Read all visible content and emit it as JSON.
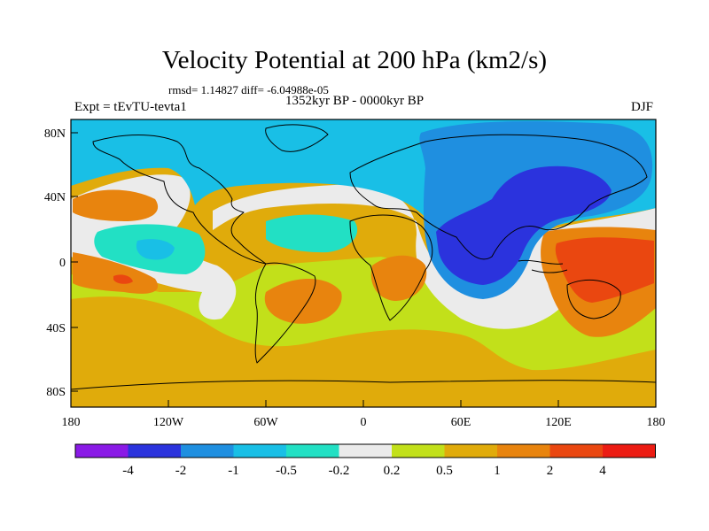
{
  "title": "Velocity Potential at 200 hPa (km2/s)",
  "stats": "rmsd= 1.14827  diff= -6.04988e-05",
  "period": "1352kyr BP - 0000kyr BP",
  "experiment": "Expt = tEvTU-tevta1",
  "season": "DJF",
  "axes": {
    "y_ticks": [
      "80N",
      "40N",
      "0",
      "40S",
      "80S"
    ],
    "x_ticks": [
      "180",
      "120W",
      "60W",
      "0",
      "60E",
      "120E",
      "180"
    ]
  },
  "colorbar": {
    "labels": [
      "-4",
      "-2",
      "-1",
      "-0.5",
      "-0.2",
      "0.2",
      "0.5",
      "1",
      "2",
      "4"
    ],
    "colors": [
      "#8a1ae6",
      "#2b33dd",
      "#1f8fe0",
      "#19bfe6",
      "#22e0c4",
      "#ebebeb",
      "#c2e01a",
      "#e0ab0b",
      "#e8840e",
      "#ea4710",
      "#ec1c13"
    ]
  },
  "field_colors": {
    "ocean_base": "#e0ab0b",
    "strong_positive": "#ea4710",
    "positive": "#e8840e",
    "weak_positive": "#c2e01a",
    "neutral": "#ebebeb",
    "weak_negative": "#22e0c4",
    "negative": "#19bfe6",
    "more_negative": "#1f8fe0",
    "strong_negative": "#2b33dd"
  }
}
